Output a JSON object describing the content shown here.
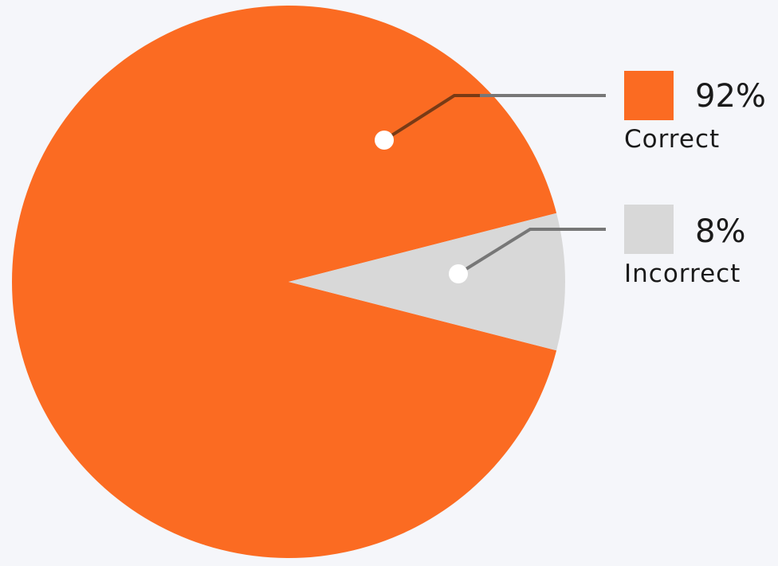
{
  "chart_data": {
    "type": "pie",
    "slices": [
      {
        "label": "Correct",
        "value": 92,
        "display": "92%",
        "color": "#fb6b22"
      },
      {
        "label": "Incorrect",
        "value": 8,
        "display": "8%",
        "color": "#d8d8d8"
      }
    ],
    "legend": "right"
  }
}
